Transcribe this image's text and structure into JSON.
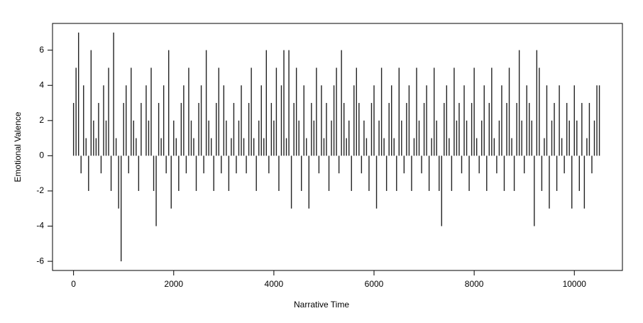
{
  "chart_data": {
    "type": "spike",
    "x_label": "Narrative Time",
    "y_label": "Emotional Valence",
    "x": [
      0,
      50,
      100,
      150,
      200,
      250,
      300,
      350,
      400,
      450,
      500,
      550,
      600,
      650,
      700,
      750,
      800,
      850,
      900,
      950,
      1000,
      1050,
      1100,
      1150,
      1200,
      1250,
      1300,
      1350,
      1400,
      1450,
      1500,
      1550,
      1600,
      1650,
      1700,
      1750,
      1800,
      1850,
      1900,
      1950,
      2000,
      2050,
      2100,
      2150,
      2200,
      2250,
      2300,
      2350,
      2400,
      2450,
      2500,
      2550,
      2600,
      2650,
      2700,
      2750,
      2800,
      2850,
      2900,
      2950,
      3000,
      3050,
      3100,
      3150,
      3200,
      3250,
      3300,
      3350,
      3400,
      3450,
      3500,
      3550,
      3600,
      3650,
      3700,
      3750,
      3800,
      3850,
      3900,
      3950,
      4000,
      4050,
      4100,
      4150,
      4200,
      4250,
      4300,
      4350,
      4400,
      4450,
      4500,
      4550,
      4600,
      4650,
      4700,
      4750,
      4800,
      4850,
      4900,
      4950,
      5000,
      5050,
      5100,
      5150,
      5200,
      5250,
      5300,
      5350,
      5400,
      5450,
      5500,
      5550,
      5600,
      5650,
      5700,
      5750,
      5800,
      5850,
      5900,
      5950,
      6000,
      6050,
      6100,
      6150,
      6200,
      6250,
      6300,
      6350,
      6400,
      6450,
      6500,
      6550,
      6600,
      6650,
      6700,
      6750,
      6800,
      6850,
      6900,
      6950,
      7000,
      7050,
      7100,
      7150,
      7200,
      7250,
      7300,
      7350,
      7400,
      7450,
      7500,
      7550,
      7600,
      7650,
      7700,
      7750,
      7800,
      7850,
      7900,
      7950,
      8000,
      8050,
      8100,
      8150,
      8200,
      8250,
      8300,
      8350,
      8400,
      8450,
      8500,
      8550,
      8600,
      8650,
      8700,
      8750,
      8800,
      8850,
      8900,
      8950,
      9000,
      9050,
      9100,
      9150,
      9200,
      9250,
      9300,
      9350,
      9400,
      9450,
      9500,
      9550,
      9600,
      9650,
      9700,
      9750,
      9800,
      9850,
      9900,
      9950,
      10000,
      10050,
      10100,
      10150,
      10200,
      10250,
      10300,
      10350,
      10400,
      10450,
      10500
    ],
    "values": [
      3,
      5,
      7,
      -1,
      4,
      1,
      -2,
      6,
      2,
      1,
      3,
      -1,
      4,
      2,
      5,
      -2,
      7,
      1,
      -3,
      -6,
      3,
      4,
      -1,
      5,
      2,
      1,
      -2,
      3,
      0,
      4,
      2,
      5,
      -2,
      -4,
      3,
      1,
      4,
      -1,
      6,
      -3,
      2,
      1,
      -2,
      3,
      4,
      -1,
      5,
      2,
      1,
      -2,
      3,
      4,
      -1,
      6,
      2,
      1,
      -2,
      3,
      5,
      -1,
      4,
      2,
      -2,
      1,
      3,
      -1,
      2,
      4,
      1,
      -1,
      3,
      5,
      1,
      -2,
      2,
      4,
      1,
      6,
      -1,
      3,
      2,
      5,
      -2,
      4,
      6,
      1,
      6,
      -3,
      3,
      5,
      2,
      -2,
      4,
      1,
      -3,
      3,
      2,
      5,
      -1,
      4,
      1,
      3,
      -2,
      2,
      4,
      5,
      -1,
      6,
      3,
      1,
      2,
      -2,
      4,
      5,
      3,
      -1,
      2,
      1,
      -2,
      3,
      4,
      -3,
      2,
      5,
      1,
      -2,
      3,
      4,
      1,
      -2,
      5,
      2,
      -1,
      3,
      4,
      -2,
      1,
      5,
      2,
      -1,
      3,
      4,
      -2,
      1,
      5,
      2,
      -2,
      -4,
      3,
      4,
      1,
      -2,
      5,
      2,
      3,
      -1,
      4,
      2,
      -2,
      3,
      5,
      1,
      -1,
      2,
      4,
      -2,
      3,
      5,
      1,
      -1,
      2,
      4,
      -2,
      3,
      5,
      1,
      -2,
      3,
      6,
      2,
      -1,
      4,
      3,
      2,
      -4,
      6,
      5,
      -2,
      1,
      4,
      -3,
      2,
      3,
      -2,
      4,
      1,
      -1,
      3,
      2,
      -3,
      4,
      2,
      -2,
      3,
      -3,
      1,
      3,
      -1,
      2,
      4,
      4
    ],
    "color": "#222222",
    "xlim": [
      -420,
      10960
    ],
    "ylim": [
      -6.52,
      7.52
    ],
    "xticks": [
      0,
      2000,
      4000,
      6000,
      8000,
      10000
    ],
    "yticks": [
      -6,
      -4,
      -2,
      0,
      2,
      4,
      6
    ]
  }
}
